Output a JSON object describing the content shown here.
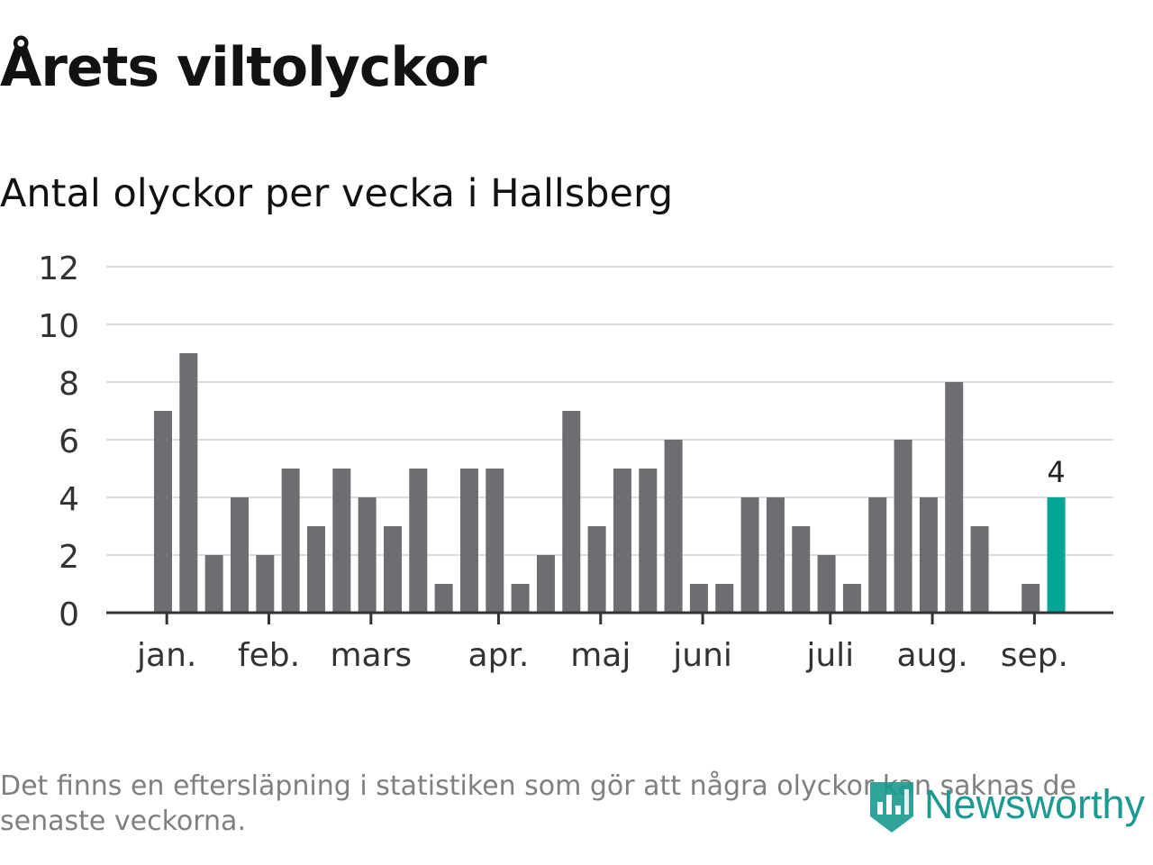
{
  "header": {
    "title": "Årets viltolyckor",
    "subtitle": "Antal olyckor per vecka i Hallsberg"
  },
  "chart_data": {
    "type": "bar",
    "title": "Årets viltolyckor",
    "subtitle": "Antal olyckor per vecka i Hallsberg",
    "xlabel": "",
    "ylabel": "",
    "ylim": [
      0,
      12
    ],
    "yticks": [
      0,
      2,
      4,
      6,
      8,
      10,
      12
    ],
    "grid": true,
    "values": [
      7,
      9,
      2,
      4,
      2,
      5,
      3,
      5,
      4,
      3,
      5,
      1,
      5,
      5,
      1,
      2,
      7,
      3,
      5,
      5,
      6,
      1,
      1,
      4,
      4,
      3,
      2,
      1,
      4,
      6,
      4,
      8,
      3,
      0,
      1,
      4
    ],
    "month_ticks": [
      {
        "label": "jan.",
        "week": 0.5
      },
      {
        "label": "feb.",
        "week": 4.5
      },
      {
        "label": "mars",
        "week": 8.5
      },
      {
        "label": "apr.",
        "week": 13.5
      },
      {
        "label": "maj",
        "week": 17.5
      },
      {
        "label": "juni",
        "week": 21.5
      },
      {
        "label": "juli",
        "week": 26.5
      },
      {
        "label": "aug.",
        "week": 30.5
      },
      {
        "label": "sep.",
        "week": 34.5
      }
    ],
    "highlight": {
      "index": 35,
      "label": "4"
    },
    "colors": {
      "bar": "#6e6d72",
      "highlight": "#00a596",
      "grid": "#dddddd",
      "axis": "#333333",
      "text": "#333333"
    }
  },
  "footer": {
    "note": "Det finns en eftersläpning i statistiken som gör att några olyckor kan saknas de senaste veckorna.",
    "logo_text": "Newsworthy",
    "logo_icon": "bar-chart-shield-icon"
  }
}
